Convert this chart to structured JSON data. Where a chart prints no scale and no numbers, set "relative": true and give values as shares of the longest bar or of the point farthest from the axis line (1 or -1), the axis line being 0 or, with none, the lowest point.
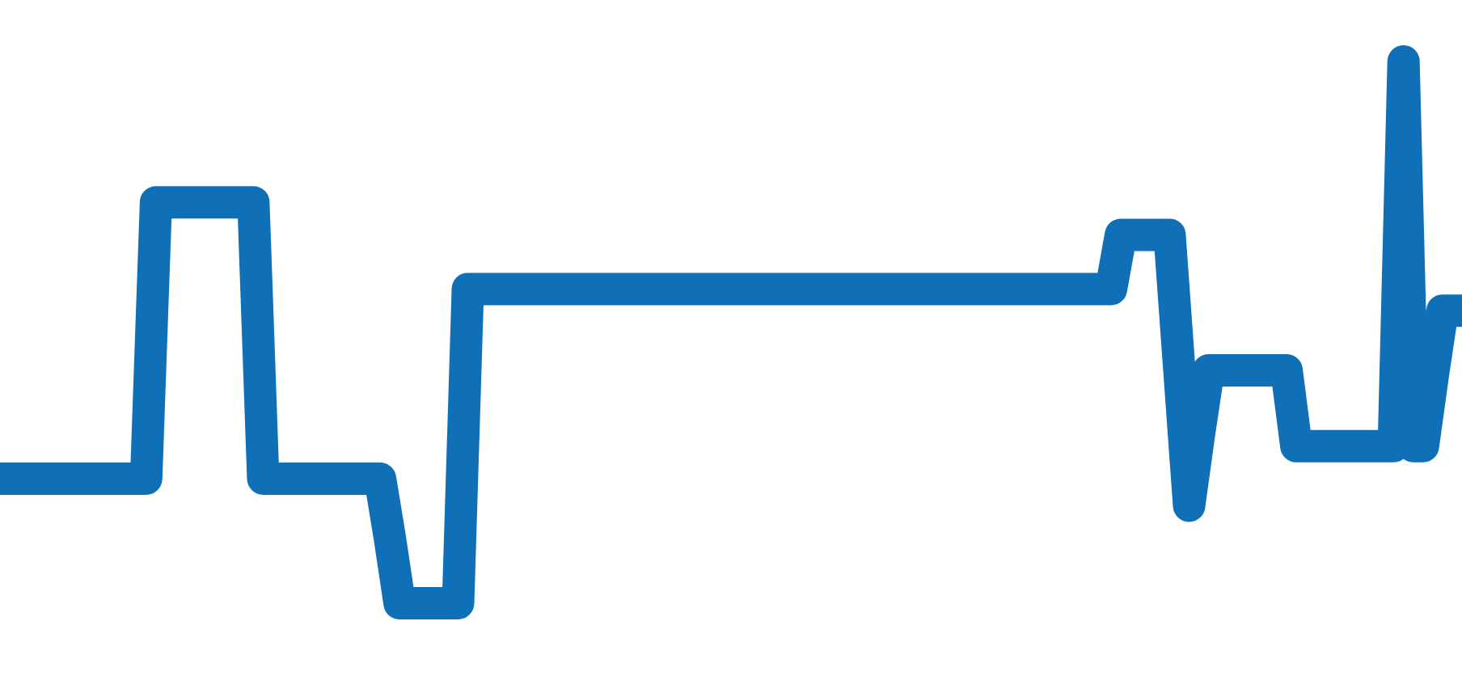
{
  "chart_data": {
    "type": "line",
    "relative": true,
    "color": "#0f70b7",
    "marker": "none",
    "categories": [
      null,
      null,
      null,
      null,
      null,
      null,
      null,
      null,
      null,
      null,
      null,
      null,
      null,
      null,
      null,
      null,
      null,
      null,
      null,
      null,
      null,
      null,
      null,
      null,
      null,
      null,
      null,
      null,
      null,
      null,
      null,
      null,
      null,
      null,
      null,
      null,
      null,
      null,
      null,
      null,
      null,
      null,
      null,
      null,
      null,
      null,
      null,
      null,
      null,
      null,
      null,
      null,
      null,
      null,
      null,
      null,
      null,
      null,
      null,
      null,
      null,
      null,
      null,
      null,
      null,
      null,
      null,
      null,
      null,
      null,
      null,
      null,
      null,
      null,
      null,
      null,
      null,
      null,
      null,
      null,
      null,
      null,
      null,
      null,
      null,
      null,
      null,
      null,
      null,
      null,
      null,
      null,
      null,
      null,
      null,
      null,
      null,
      null,
      null,
      null,
      null,
      null,
      null,
      null,
      null,
      null,
      null,
      null,
      null,
      null,
      null,
      null,
      null,
      null,
      null,
      null,
      null,
      null,
      null,
      null,
      null,
      null,
      null,
      null,
      null,
      null,
      null,
      null,
      null,
      null,
      null,
      null,
      null,
      null,
      null,
      null,
      null,
      null,
      null,
      null,
      null,
      null,
      null,
      null,
      null,
      null,
      null,
      null,
      null,
      null,
      null
    ],
    "values": [
      0.23,
      0.23,
      0.23,
      0.23,
      0.23,
      0.23,
      0.23,
      0.23,
      0.23,
      0.23,
      0.23,
      0.23,
      0.23,
      0.23,
      0.23,
      0.23,
      0.74,
      0.74,
      0.74,
      0.74,
      0.74,
      0.74,
      0.74,
      0.74,
      0.74,
      0.74,
      0.74,
      0.23,
      0.23,
      0.23,
      0.23,
      0.23,
      0.23,
      0.23,
      0.23,
      0.23,
      0.23,
      0.23,
      0.23,
      0.23,
      0.12,
      0,
      0,
      0,
      0,
      0,
      0,
      0,
      0.58,
      0.58,
      0.58,
      0.58,
      0.58,
      0.58,
      0.58,
      0.58,
      0.58,
      0.58,
      0.58,
      0.58,
      0.58,
      0.58,
      0.58,
      0.58,
      0.58,
      0.58,
      0.58,
      0.58,
      0.58,
      0.58,
      0.58,
      0.58,
      0.58,
      0.58,
      0.58,
      0.58,
      0.58,
      0.58,
      0.58,
      0.58,
      0.58,
      0.58,
      0.58,
      0.58,
      0.58,
      0.58,
      0.58,
      0.58,
      0.58,
      0.58,
      0.58,
      0.58,
      0.58,
      0.58,
      0.58,
      0.58,
      0.58,
      0.58,
      0.58,
      0.58,
      0.58,
      0.58,
      0.58,
      0.58,
      0.58,
      0.58,
      0.58,
      0.58,
      0.58,
      0.58,
      0.58,
      0.58,
      0.58,
      0.58,
      0.58,
      0.68,
      0.68,
      0.68,
      0.68,
      0.68,
      0.68,
      0.43,
      0.18,
      0.31,
      0.43,
      0.43,
      0.43,
      0.43,
      0.43,
      0.43,
      0.43,
      0.43,
      0.43,
      0.29,
      0.29,
      0.29,
      0.29,
      0.29,
      0.29,
      0.29,
      0.29,
      0.29,
      0.29,
      0.29,
      1,
      0.29,
      0.29,
      0.42,
      0.54,
      0.54,
      0.54
    ]
  }
}
